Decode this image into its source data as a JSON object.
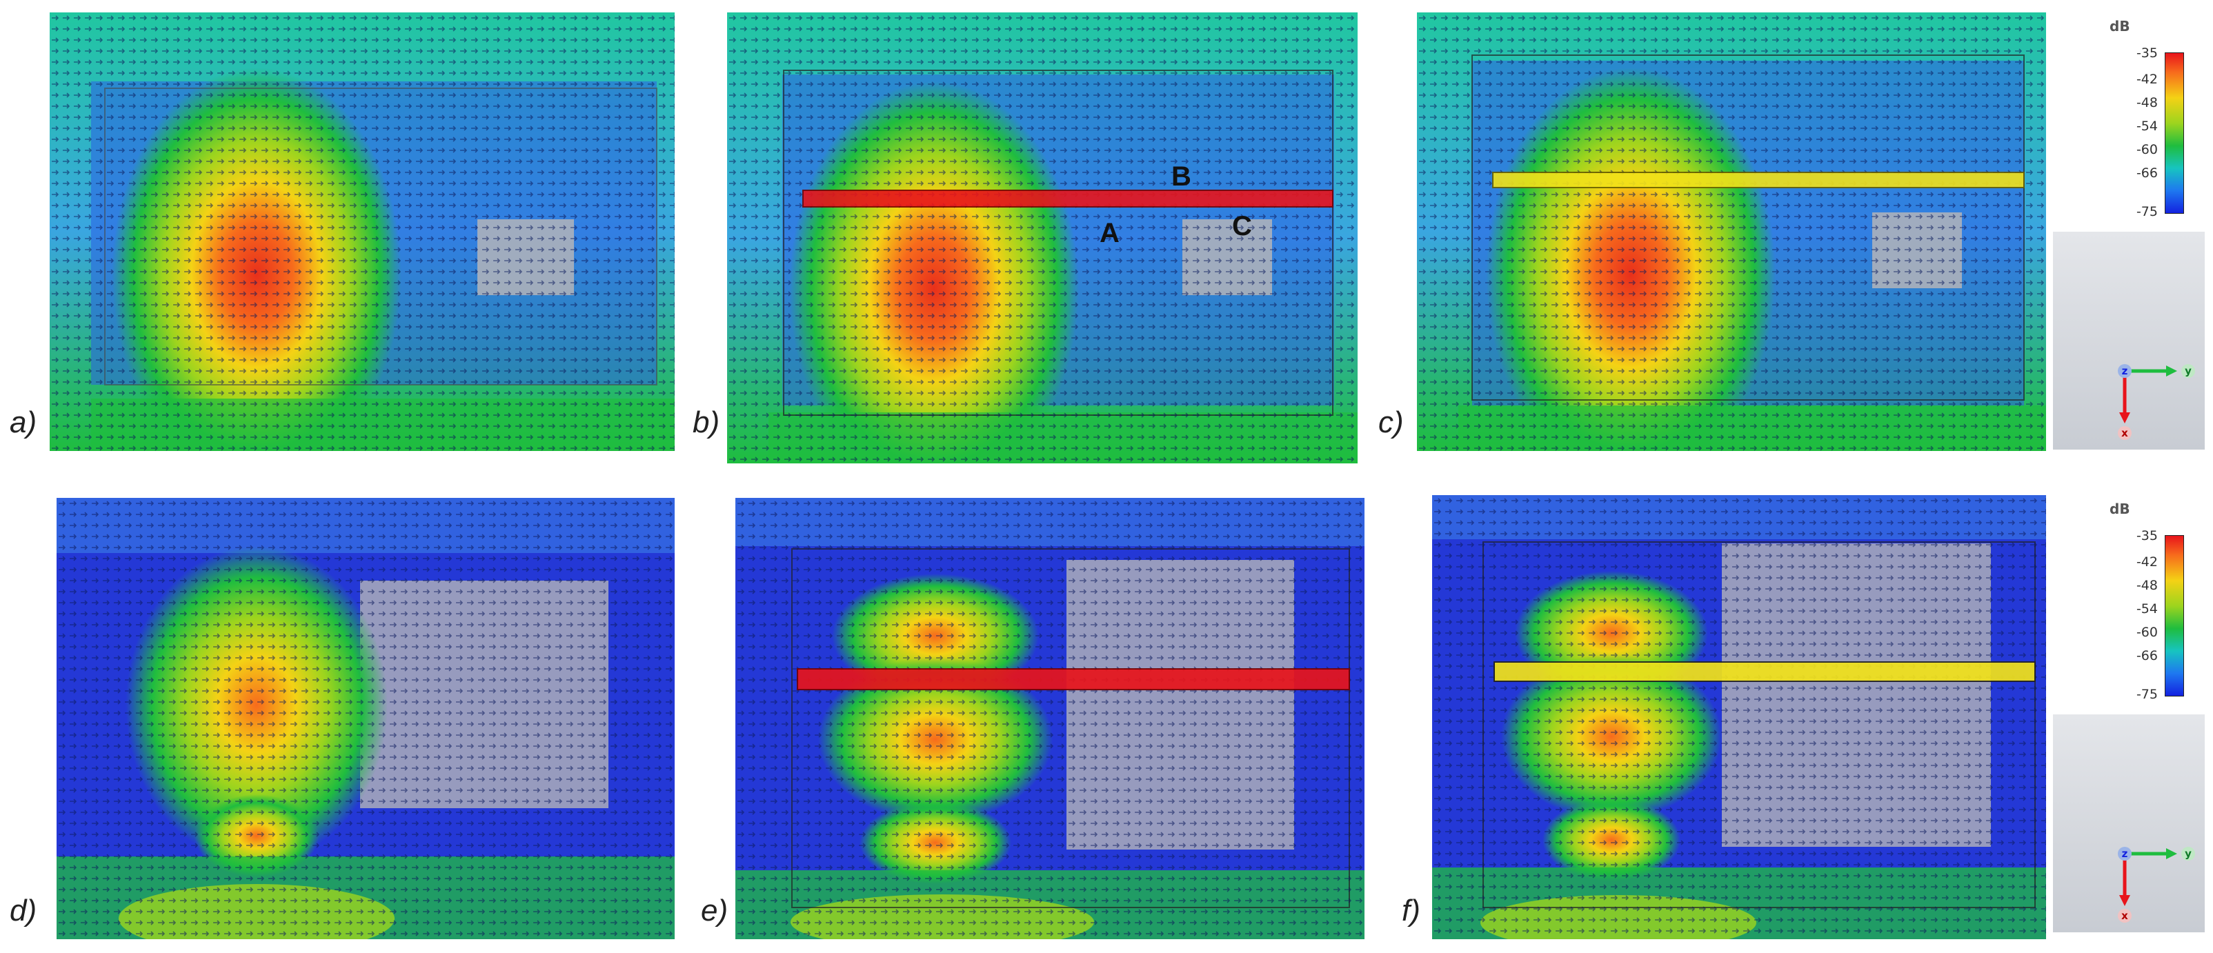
{
  "panels": [
    {
      "id": "a",
      "label": "a)",
      "strip": "none"
    },
    {
      "id": "b",
      "label": "b)",
      "strip": "red"
    },
    {
      "id": "c",
      "label": "c)",
      "strip": "yellow"
    },
    {
      "id": "d",
      "label": "d)",
      "strip": "none"
    },
    {
      "id": "e",
      "label": "e)",
      "strip": "red"
    },
    {
      "id": "f",
      "label": "f)",
      "strip": "yellow"
    }
  ],
  "annotations": {
    "A": "A",
    "B": "B",
    "C": "C"
  },
  "colorbar": {
    "unit": "dB",
    "ticks": [
      "-35",
      "-42",
      "-48",
      "-54",
      "-60",
      "-66",
      "-75"
    ]
  },
  "axes": {
    "z": "z",
    "y": "y",
    "x": "x"
  },
  "colors": {
    "strip_red": "#e8141b",
    "strip_yellow": "#f2e21a",
    "field_high": "#e8301b",
    "field_mid": "#f4d215",
    "field_low": "#1322e0",
    "metal_gray": "#b4b4b8",
    "axis_y": "#1fbd3f",
    "axis_x": "#e8141b"
  }
}
